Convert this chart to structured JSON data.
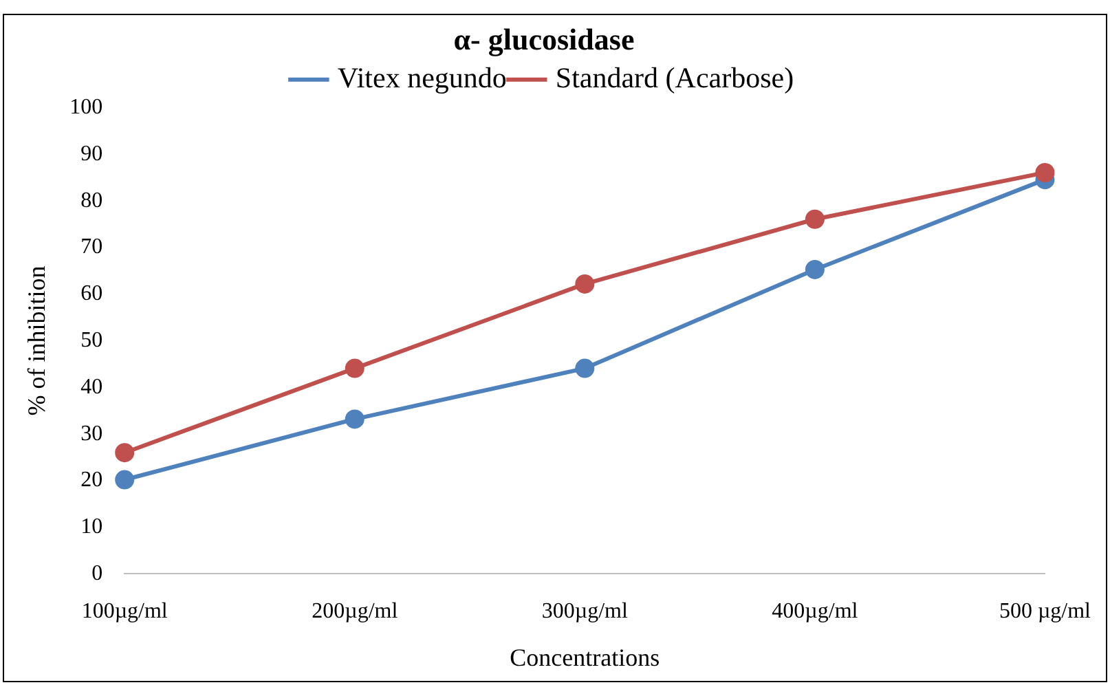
{
  "chart_data": {
    "type": "line",
    "title": "α- glucosidase",
    "xlabel": "Concentrations",
    "ylabel": "% of inhibition",
    "categories": [
      "100µg/ml",
      "200µg/ml",
      "300µg/ml",
      "400µg/ml",
      "500 µg/ml"
    ],
    "series": [
      {
        "name": "Vitex negundo",
        "color": "#4f81bd",
        "values": [
          20.2,
          33.2,
          44.1,
          65.3,
          84.6
        ]
      },
      {
        "name": "Standard (Acarbose)",
        "color": "#c0504d",
        "values": [
          26.0,
          44.1,
          62.2,
          76.1,
          86.1
        ]
      }
    ],
    "ylim": [
      0,
      100
    ],
    "yticks": [
      0,
      10,
      20,
      30,
      40,
      50,
      60,
      70,
      80,
      90,
      100
    ],
    "grid": false,
    "legend": "top",
    "marker": "circle",
    "line_style": "solid"
  }
}
